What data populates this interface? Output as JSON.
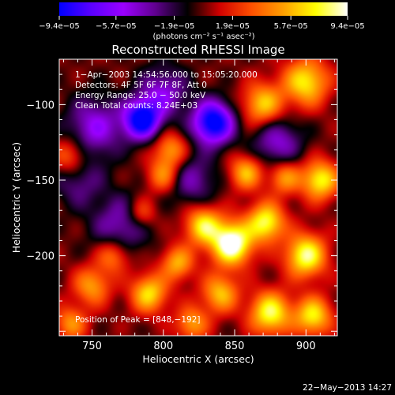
{
  "chart_data": {
    "type": "heatmap",
    "title": "Reconstructed RHESSI Image",
    "xlabel": "Heliocentric X (arcsec)",
    "ylabel": "Heliocentric Y (arcsec)",
    "xlim": [
      727,
      922
    ],
    "ylim": [
      -253,
      -70
    ],
    "x_ticks": [
      {
        "value": 750,
        "label": "750"
      },
      {
        "value": 800,
        "label": "800"
      },
      {
        "value": 850,
        "label": "850"
      },
      {
        "value": 900,
        "label": "900"
      }
    ],
    "y_ticks": [
      {
        "value": -100,
        "label": "−100"
      },
      {
        "value": -150,
        "label": "−150"
      },
      {
        "value": -200,
        "label": "−200"
      }
    ],
    "colorbar": {
      "range": [
        -9.4e-05,
        9.4e-05
      ],
      "ticks": [
        {
          "value": -9.4e-05,
          "label": "−9.4e−05"
        },
        {
          "value": -5.7e-05,
          "label": "−5.7e−05"
        },
        {
          "value": -1.9e-05,
          "label": "−1.9e−05"
        },
        {
          "value": 1.9e-05,
          "label": "1.9e−05"
        },
        {
          "value": 5.7e-05,
          "label": "5.7e−05"
        },
        {
          "value": 9.4e-05,
          "label": "9.4e−05"
        }
      ],
      "unit_label": "(photons cm⁻² s⁻¹ asec⁻²)",
      "colors": [
        "#0000ff",
        "#5a00ff",
        "#9b00ff",
        "#60008f",
        "#000000",
        "#d00000",
        "#ff5000",
        "#ffa000",
        "#ffff00",
        "#ffffff"
      ]
    },
    "annotations": {
      "time": "1−Apr−2003 14:54:56.000 to 15:05:20.000",
      "detectors": "Detectors: 4F 5F 6F 7F 8F, Att 0",
      "energy": "Energy Range: 25.0 − 50.0 keV",
      "clean": "Clean     Total counts: 8.24E+03",
      "peak": "Position of Peak = [848,−192]"
    },
    "peak": {
      "x": 848,
      "y": -192
    },
    "sources": [
      {
        "x": 785,
        "y": -110,
        "amp": -1.2,
        "sigma": 9
      },
      {
        "x": 835,
        "y": -112,
        "amp": -1.25,
        "sigma": 10
      },
      {
        "x": 752,
        "y": -115,
        "amp": -0.6,
        "sigma": 14
      },
      {
        "x": 800,
        "y": -92,
        "amp": -0.55,
        "sigma": 12
      },
      {
        "x": 880,
        "y": -125,
        "amp": -0.55,
        "sigma": 12
      },
      {
        "x": 770,
        "y": -180,
        "amp": -0.5,
        "sigma": 14
      },
      {
        "x": 820,
        "y": -150,
        "amp": -0.45,
        "sigma": 12
      },
      {
        "x": 740,
        "y": -150,
        "amp": -0.4,
        "sigma": 12
      },
      {
        "x": 900,
        "y": -85,
        "amp": 0.85,
        "sigma": 11
      },
      {
        "x": 870,
        "y": -100,
        "amp": 0.75,
        "sigma": 10
      },
      {
        "x": 735,
        "y": -135,
        "amp": 0.55,
        "sigma": 9
      },
      {
        "x": 805,
        "y": -130,
        "amp": 0.6,
        "sigma": 8
      },
      {
        "x": 800,
        "y": -147,
        "amp": 0.55,
        "sigma": 8
      },
      {
        "x": 848,
        "y": -192,
        "amp": 1.25,
        "sigma": 10
      },
      {
        "x": 828,
        "y": -180,
        "amp": 0.85,
        "sigma": 9
      },
      {
        "x": 872,
        "y": -178,
        "amp": 0.95,
        "sigma": 9
      },
      {
        "x": 900,
        "y": -200,
        "amp": 1.0,
        "sigma": 10
      },
      {
        "x": 910,
        "y": -150,
        "amp": 0.9,
        "sigma": 9
      },
      {
        "x": 858,
        "y": -145,
        "amp": 0.7,
        "sigma": 8
      },
      {
        "x": 885,
        "y": -148,
        "amp": 0.6,
        "sigma": 8
      },
      {
        "x": 765,
        "y": -200,
        "amp": 0.55,
        "sigma": 8
      },
      {
        "x": 750,
        "y": -220,
        "amp": 0.6,
        "sigma": 9
      },
      {
        "x": 790,
        "y": -225,
        "amp": 0.8,
        "sigma": 9
      },
      {
        "x": 810,
        "y": -205,
        "amp": 0.65,
        "sigma": 8
      },
      {
        "x": 840,
        "y": -225,
        "amp": 0.7,
        "sigma": 9
      },
      {
        "x": 875,
        "y": -238,
        "amp": 0.95,
        "sigma": 10
      },
      {
        "x": 905,
        "y": -240,
        "amp": 0.85,
        "sigma": 9
      },
      {
        "x": 735,
        "y": -245,
        "amp": 0.55,
        "sigma": 8
      },
      {
        "x": 785,
        "y": -172,
        "amp": 0.45,
        "sigma": 7
      },
      {
        "x": 820,
        "y": -245,
        "amp": 0.6,
        "sigma": 8
      }
    ]
  },
  "footer": {
    "date": "22−May−2013 14:27"
  }
}
